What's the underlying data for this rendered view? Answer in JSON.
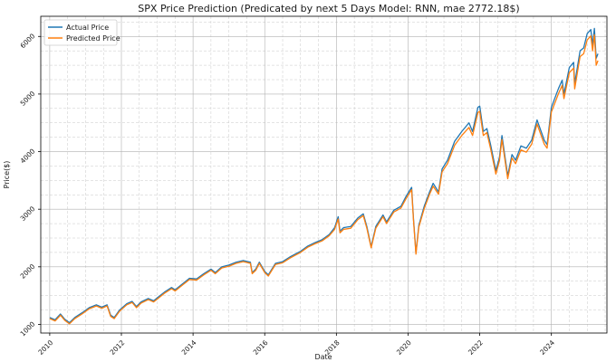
{
  "chart_data": {
    "type": "line",
    "title": "SPX Price Prediction (Predicated by next 5 Days Model: RNN, mae 2772.18$)",
    "xlabel": "Date",
    "ylabel": "Price($)",
    "xlim": [
      2009.75,
      2025.55
    ],
    "ylim": [
      850,
      6350
    ],
    "x_ticks": [
      2010,
      2012,
      2014,
      2016,
      2018,
      2020,
      2022,
      2024
    ],
    "x_tick_labels": [
      "2010",
      "2012",
      "2014",
      "2016",
      "2018",
      "2020",
      "2022",
      "2024"
    ],
    "y_ticks": [
      1000,
      2000,
      3000,
      4000,
      5000,
      6000
    ],
    "y_tick_labels": [
      "1000",
      "2000",
      "3000",
      "4000",
      "5000",
      "6000"
    ],
    "grid": true,
    "legend_position": "top-left",
    "series": [
      {
        "name": "Actual Price",
        "color": "#1f77b4",
        "points": [
          [
            2010.0,
            1120
          ],
          [
            2010.15,
            1080
          ],
          [
            2010.3,
            1180
          ],
          [
            2010.42,
            1090
          ],
          [
            2010.55,
            1030
          ],
          [
            2010.7,
            1120
          ],
          [
            2010.9,
            1200
          ],
          [
            2011.1,
            1290
          ],
          [
            2011.3,
            1340
          ],
          [
            2011.45,
            1300
          ],
          [
            2011.6,
            1340
          ],
          [
            2011.7,
            1160
          ],
          [
            2011.8,
            1120
          ],
          [
            2011.95,
            1250
          ],
          [
            2012.15,
            1360
          ],
          [
            2012.3,
            1400
          ],
          [
            2012.42,
            1310
          ],
          [
            2012.55,
            1390
          ],
          [
            2012.75,
            1450
          ],
          [
            2012.9,
            1410
          ],
          [
            2013.0,
            1460
          ],
          [
            2013.2,
            1560
          ],
          [
            2013.4,
            1640
          ],
          [
            2013.5,
            1600
          ],
          [
            2013.7,
            1700
          ],
          [
            2013.9,
            1800
          ],
          [
            2014.1,
            1790
          ],
          [
            2014.3,
            1880
          ],
          [
            2014.5,
            1960
          ],
          [
            2014.62,
            1900
          ],
          [
            2014.8,
            2000
          ],
          [
            2015.0,
            2030
          ],
          [
            2015.2,
            2080
          ],
          [
            2015.4,
            2110
          ],
          [
            2015.6,
            2080
          ],
          [
            2015.65,
            1900
          ],
          [
            2015.75,
            1960
          ],
          [
            2015.85,
            2080
          ],
          [
            2016.0,
            1920
          ],
          [
            2016.1,
            1860
          ],
          [
            2016.3,
            2060
          ],
          [
            2016.5,
            2090
          ],
          [
            2016.7,
            2170
          ],
          [
            2016.85,
            2220
          ],
          [
            2017.0,
            2270
          ],
          [
            2017.2,
            2360
          ],
          [
            2017.4,
            2420
          ],
          [
            2017.6,
            2470
          ],
          [
            2017.8,
            2560
          ],
          [
            2017.95,
            2680
          ],
          [
            2018.05,
            2870
          ],
          [
            2018.1,
            2620
          ],
          [
            2018.2,
            2680
          ],
          [
            2018.4,
            2700
          ],
          [
            2018.6,
            2850
          ],
          [
            2018.75,
            2920
          ],
          [
            2018.85,
            2700
          ],
          [
            2018.97,
            2350
          ],
          [
            2019.1,
            2700
          ],
          [
            2019.3,
            2900
          ],
          [
            2019.4,
            2780
          ],
          [
            2019.6,
            2980
          ],
          [
            2019.8,
            3050
          ],
          [
            2019.95,
            3230
          ],
          [
            2020.1,
            3380
          ],
          [
            2020.15,
            2850
          ],
          [
            2020.22,
            2240
          ],
          [
            2020.3,
            2720
          ],
          [
            2020.45,
            3050
          ],
          [
            2020.6,
            3300
          ],
          [
            2020.7,
            3450
          ],
          [
            2020.85,
            3300
          ],
          [
            2020.95,
            3700
          ],
          [
            2021.1,
            3850
          ],
          [
            2021.3,
            4180
          ],
          [
            2021.5,
            4350
          ],
          [
            2021.7,
            4500
          ],
          [
            2021.8,
            4350
          ],
          [
            2021.95,
            4770
          ],
          [
            2022.0,
            4790
          ],
          [
            2022.1,
            4350
          ],
          [
            2022.2,
            4400
          ],
          [
            2022.3,
            4130
          ],
          [
            2022.45,
            3670
          ],
          [
            2022.55,
            3900
          ],
          [
            2022.62,
            4280
          ],
          [
            2022.78,
            3580
          ],
          [
            2022.9,
            3950
          ],
          [
            2023.0,
            3850
          ],
          [
            2023.15,
            4100
          ],
          [
            2023.3,
            4060
          ],
          [
            2023.45,
            4200
          ],
          [
            2023.6,
            4550
          ],
          [
            2023.8,
            4200
          ],
          [
            2023.88,
            4120
          ],
          [
            2024.0,
            4770
          ],
          [
            2024.2,
            5100
          ],
          [
            2024.3,
            5240
          ],
          [
            2024.35,
            5000
          ],
          [
            2024.5,
            5460
          ],
          [
            2024.62,
            5550
          ],
          [
            2024.65,
            5180
          ],
          [
            2024.8,
            5750
          ],
          [
            2024.9,
            5800
          ],
          [
            2025.0,
            6050
          ],
          [
            2025.1,
            6120
          ],
          [
            2025.15,
            5850
          ],
          [
            2025.2,
            6140
          ],
          [
            2025.25,
            5620
          ],
          [
            2025.3,
            5700
          ]
        ]
      },
      {
        "name": "Predicted Price",
        "color": "#ff7f0e",
        "points": [
          [
            2010.0,
            1100
          ],
          [
            2010.15,
            1060
          ],
          [
            2010.3,
            1160
          ],
          [
            2010.42,
            1070
          ],
          [
            2010.55,
            1010
          ],
          [
            2010.7,
            1100
          ],
          [
            2010.9,
            1180
          ],
          [
            2011.1,
            1270
          ],
          [
            2011.3,
            1320
          ],
          [
            2011.45,
            1280
          ],
          [
            2011.6,
            1320
          ],
          [
            2011.7,
            1140
          ],
          [
            2011.8,
            1100
          ],
          [
            2011.95,
            1230
          ],
          [
            2012.15,
            1340
          ],
          [
            2012.3,
            1380
          ],
          [
            2012.42,
            1290
          ],
          [
            2012.55,
            1370
          ],
          [
            2012.75,
            1430
          ],
          [
            2012.9,
            1390
          ],
          [
            2013.0,
            1440
          ],
          [
            2013.2,
            1540
          ],
          [
            2013.4,
            1620
          ],
          [
            2013.5,
            1580
          ],
          [
            2013.7,
            1680
          ],
          [
            2013.9,
            1780
          ],
          [
            2014.1,
            1770
          ],
          [
            2014.3,
            1860
          ],
          [
            2014.5,
            1940
          ],
          [
            2014.62,
            1880
          ],
          [
            2014.8,
            1980
          ],
          [
            2015.0,
            2010
          ],
          [
            2015.2,
            2060
          ],
          [
            2015.4,
            2090
          ],
          [
            2015.6,
            2060
          ],
          [
            2015.65,
            1880
          ],
          [
            2015.75,
            1940
          ],
          [
            2015.85,
            2060
          ],
          [
            2016.0,
            1900
          ],
          [
            2016.1,
            1840
          ],
          [
            2016.3,
            2040
          ],
          [
            2016.5,
            2070
          ],
          [
            2016.7,
            2150
          ],
          [
            2016.85,
            2200
          ],
          [
            2017.0,
            2250
          ],
          [
            2017.2,
            2340
          ],
          [
            2017.4,
            2400
          ],
          [
            2017.6,
            2450
          ],
          [
            2017.8,
            2540
          ],
          [
            2017.95,
            2650
          ],
          [
            2018.05,
            2830
          ],
          [
            2018.1,
            2590
          ],
          [
            2018.2,
            2650
          ],
          [
            2018.4,
            2670
          ],
          [
            2018.6,
            2820
          ],
          [
            2018.75,
            2890
          ],
          [
            2018.85,
            2670
          ],
          [
            2018.97,
            2330
          ],
          [
            2019.1,
            2670
          ],
          [
            2019.3,
            2870
          ],
          [
            2019.4,
            2750
          ],
          [
            2019.6,
            2950
          ],
          [
            2019.8,
            3020
          ],
          [
            2019.95,
            3190
          ],
          [
            2020.1,
            3340
          ],
          [
            2020.15,
            2820
          ],
          [
            2020.22,
            2220
          ],
          [
            2020.3,
            2690
          ],
          [
            2020.45,
            3010
          ],
          [
            2020.6,
            3260
          ],
          [
            2020.7,
            3400
          ],
          [
            2020.85,
            3260
          ],
          [
            2020.95,
            3650
          ],
          [
            2021.1,
            3790
          ],
          [
            2021.3,
            4110
          ],
          [
            2021.5,
            4280
          ],
          [
            2021.7,
            4420
          ],
          [
            2021.8,
            4280
          ],
          [
            2021.95,
            4680
          ],
          [
            2022.0,
            4700
          ],
          [
            2022.1,
            4280
          ],
          [
            2022.2,
            4330
          ],
          [
            2022.3,
            4060
          ],
          [
            2022.45,
            3610
          ],
          [
            2022.55,
            3840
          ],
          [
            2022.62,
            4210
          ],
          [
            2022.78,
            3530
          ],
          [
            2022.9,
            3890
          ],
          [
            2023.0,
            3790
          ],
          [
            2023.15,
            4030
          ],
          [
            2023.3,
            3990
          ],
          [
            2023.45,
            4130
          ],
          [
            2023.6,
            4480
          ],
          [
            2023.8,
            4130
          ],
          [
            2023.88,
            4060
          ],
          [
            2024.0,
            4690
          ],
          [
            2024.2,
            5010
          ],
          [
            2024.3,
            5150
          ],
          [
            2024.35,
            4920
          ],
          [
            2024.5,
            5370
          ],
          [
            2024.62,
            5450
          ],
          [
            2024.65,
            5090
          ],
          [
            2024.8,
            5650
          ],
          [
            2024.9,
            5700
          ],
          [
            2025.0,
            5940
          ],
          [
            2025.1,
            6010
          ],
          [
            2025.15,
            5750
          ],
          [
            2025.2,
            6030
          ],
          [
            2025.25,
            5500
          ],
          [
            2025.3,
            5580
          ]
        ]
      }
    ]
  }
}
